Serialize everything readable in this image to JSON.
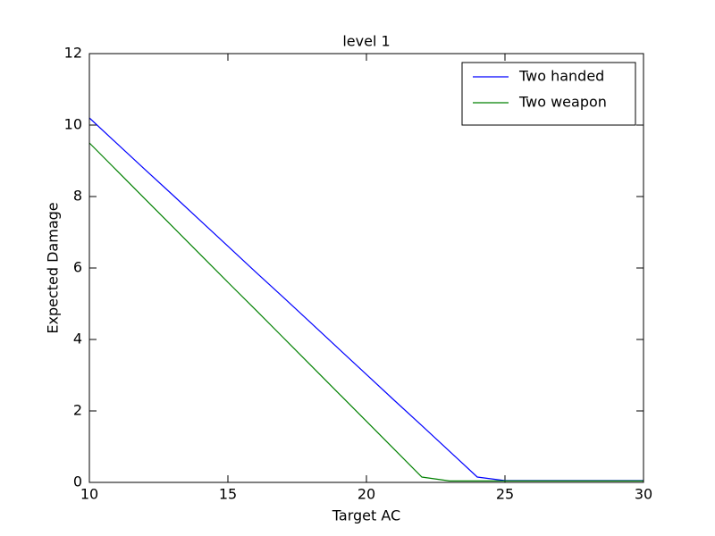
{
  "chart_data": {
    "type": "line",
    "title": "level 1",
    "x_label": "Target AC",
    "y_label": "Expected Damage",
    "x": [
      10,
      11,
      12,
      13,
      14,
      15,
      16,
      17,
      18,
      19,
      20,
      21,
      22,
      23,
      24,
      25,
      26,
      27,
      28,
      29,
      30
    ],
    "series": [
      {
        "name": "Two handed",
        "color": "#0000ff",
        "values": [
          10.2,
          9.48,
          8.76,
          8.05,
          7.33,
          6.61,
          5.89,
          5.18,
          4.46,
          3.74,
          3.02,
          2.3,
          1.59,
          0.87,
          0.15,
          0.05,
          0.05,
          0.05,
          0.05,
          0.05,
          0.05
        ]
      },
      {
        "name": "Two weapon",
        "color": "#008000",
        "values": [
          9.5,
          8.72,
          7.94,
          7.16,
          6.38,
          5.6,
          4.83,
          4.05,
          3.27,
          2.49,
          1.71,
          0.93,
          0.15,
          0.04,
          0.04,
          0.04,
          0.04,
          0.04,
          0.04,
          0.04,
          0.04
        ]
      }
    ],
    "xlim": [
      10,
      30
    ],
    "xticks": [
      10,
      15,
      20,
      25,
      30
    ],
    "ylim": [
      0,
      12
    ],
    "yticks": [
      0,
      2,
      4,
      6,
      8,
      10,
      12
    ],
    "legend": "upper right"
  }
}
